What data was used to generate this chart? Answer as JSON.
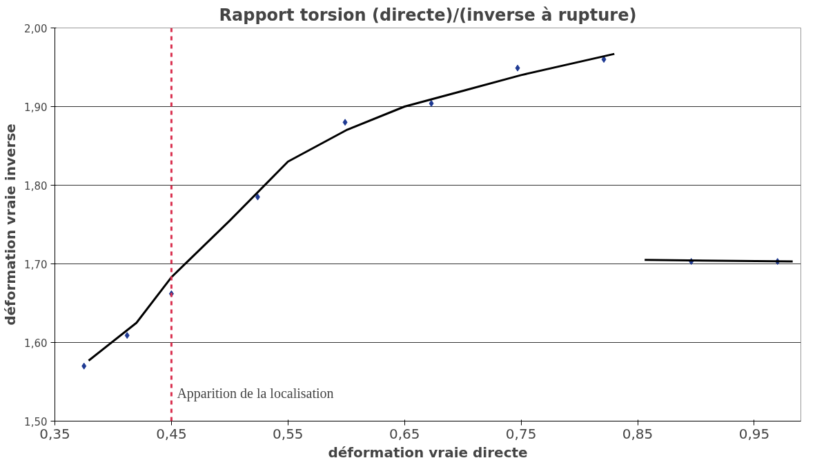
{
  "chart_data": {
    "type": "scatter",
    "title": "Rapport torsion (directe)/(inverse à rupture)",
    "xlabel": "déformation vraie directe",
    "ylabel": "déformation vraie inverse",
    "xlim": [
      0.35,
      0.99
    ],
    "ylim": [
      1.5,
      2.0
    ],
    "xticks": [
      {
        "value": 0.35,
        "label": "0,35"
      },
      {
        "value": 0.45,
        "label": "0,45"
      },
      {
        "value": 0.55,
        "label": "0,55"
      },
      {
        "value": 0.65,
        "label": "0,65"
      },
      {
        "value": 0.75,
        "label": "0,75"
      },
      {
        "value": 0.85,
        "label": "0,85"
      },
      {
        "value": 0.95,
        "label": "0,95"
      }
    ],
    "yticks": [
      {
        "value": 1.5,
        "label": "1,50"
      },
      {
        "value": 1.6,
        "label": "1,60"
      },
      {
        "value": 1.7,
        "label": "1,70"
      },
      {
        "value": 1.8,
        "label": "1,80"
      },
      {
        "value": 1.9,
        "label": "1,90"
      },
      {
        "value": 2.0,
        "label": "2,00"
      }
    ],
    "grid": "y",
    "series": [
      {
        "marker": "diamond",
        "color": "#1f3a93",
        "x": [
          0.375,
          0.412,
          0.45,
          0.524,
          0.599,
          0.673,
          0.747,
          0.821,
          0.896,
          0.97
        ],
        "values": [
          1.57,
          1.609,
          1.662,
          1.785,
          1.88,
          1.904,
          1.949,
          1.96,
          1.703,
          1.703
        ]
      },
      {
        "type": "line",
        "marker": "none",
        "color": "#000000",
        "x": [
          0.379,
          0.42,
          0.45,
          0.5,
          0.55,
          0.6,
          0.65,
          0.7,
          0.75,
          0.83
        ],
        "values": [
          1.577,
          1.625,
          1.683,
          1.755,
          1.83,
          1.87,
          1.9,
          1.92,
          1.94,
          1.967
        ]
      },
      {
        "type": "line",
        "marker": "none",
        "color": "#000000",
        "x": [
          0.856,
          0.983
        ],
        "values": [
          1.705,
          1.703
        ]
      }
    ],
    "ref_lines": [
      {
        "axis": "x",
        "value": 0.45,
        "label": "Apparition de la localisation",
        "color": "#d9304f",
        "line_style": "dashed"
      }
    ]
  }
}
